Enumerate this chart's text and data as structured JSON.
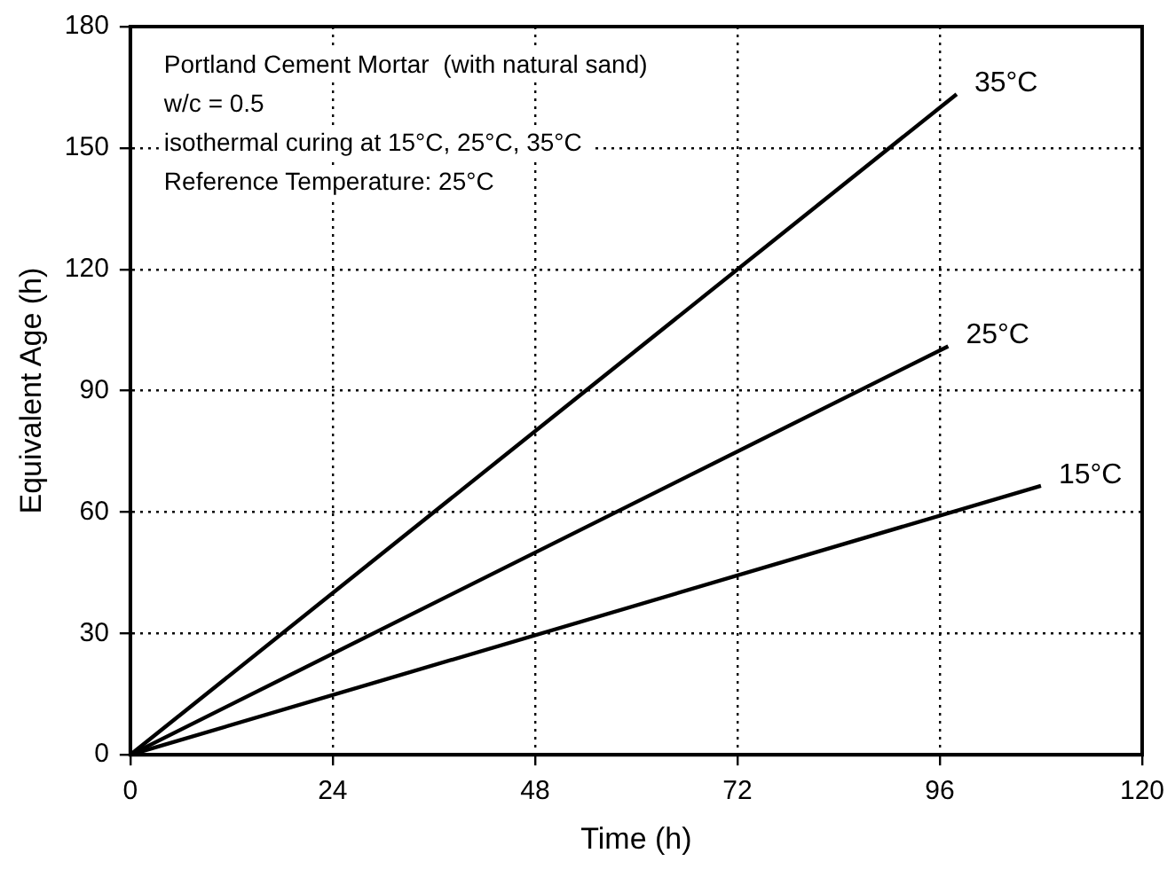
{
  "chart_data": {
    "type": "line",
    "xlabel": "Time (h)",
    "ylabel": "Equivalent Age (h)",
    "xlim": [
      0,
      120
    ],
    "xticks": [
      0,
      24,
      48,
      72,
      96,
      120
    ],
    "ylim": [
      0,
      180
    ],
    "yticks": [
      0,
      30,
      60,
      90,
      120,
      150,
      180
    ],
    "grid": true,
    "line_style": "solid",
    "marker": "none",
    "legend": false,
    "series": [
      {
        "name": "35°C",
        "color": "#000000",
        "x": [
          0,
          98
        ],
        "values": [
          0,
          163.3
        ]
      },
      {
        "name": "25°C",
        "color": "#000000",
        "x": [
          0,
          97
        ],
        "values": [
          0,
          101
        ]
      },
      {
        "name": "15°C",
        "color": "#000000",
        "x": [
          0,
          108
        ],
        "values": [
          0,
          66.5
        ]
      }
    ],
    "annotations": [
      "Portland Cement Mortar  (with natural sand)",
      "w/c = 0.5",
      "isothermal curing at 15°C, 25°C, 35°C",
      "Reference Temperature: 25°C"
    ]
  }
}
